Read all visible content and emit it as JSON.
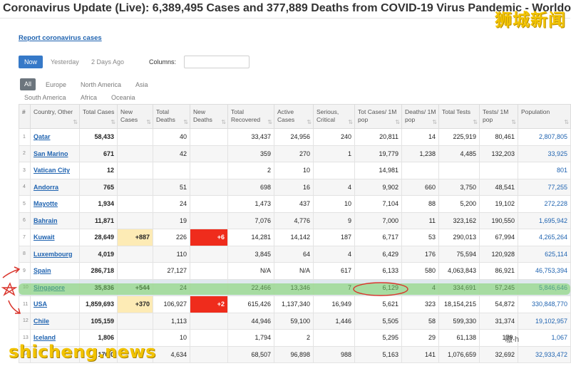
{
  "title": "Coronavirus Update (Live): 6,389,495 Cases and 377,889 Deaths from COVID-19 Virus Pandemic - Worldo",
  "watermark_top": "狮城新闻",
  "watermark_bottom": "shicheng.news",
  "watermark_right": "嗷 h",
  "report_link": "Report coronavirus cases",
  "day_buttons": {
    "now": "Now",
    "yesterday": "Yesterday",
    "two_days": "2 Days Ago"
  },
  "columns_label": "Columns:",
  "regions": {
    "all": "All",
    "europe": "Europe",
    "north_america": "North America",
    "asia": "Asia",
    "south_america": "South America",
    "africa": "Africa",
    "oceania": "Oceania"
  },
  "headers": [
    "#",
    "Country, Other",
    "Total Cases",
    "New Cases",
    "Total Deaths",
    "New Deaths",
    "Total Recovered",
    "Active Cases",
    "Serious, Critical",
    "Tot Cases/ 1M pop",
    "Deaths/ 1M pop",
    "Total Tests",
    "Tests/ 1M pop",
    "Population"
  ],
  "rows": [
    [
      "1",
      "Qatar",
      "58,433",
      "",
      "40",
      "",
      "33,437",
      "24,956",
      "240",
      "20,811",
      "14",
      "225,919",
      "80,461",
      "2,807,805"
    ],
    [
      "2",
      "San Marino",
      "671",
      "",
      "42",
      "",
      "359",
      "270",
      "1",
      "19,779",
      "1,238",
      "4,485",
      "132,203",
      "33,925"
    ],
    [
      "3",
      "Vatican City",
      "12",
      "",
      "",
      "",
      "2",
      "10",
      "",
      "14,981",
      "",
      "",
      "",
      "801"
    ],
    [
      "4",
      "Andorra",
      "765",
      "",
      "51",
      "",
      "698",
      "16",
      "4",
      "9,902",
      "660",
      "3,750",
      "48,541",
      "77,255"
    ],
    [
      "5",
      "Mayotte",
      "1,934",
      "",
      "24",
      "",
      "1,473",
      "437",
      "10",
      "7,104",
      "88",
      "5,200",
      "19,102",
      "272,228"
    ],
    [
      "6",
      "Bahrain",
      "11,871",
      "",
      "19",
      "",
      "7,076",
      "4,776",
      "9",
      "7,000",
      "11",
      "323,162",
      "190,550",
      "1,695,942"
    ],
    [
      "7",
      "Kuwait",
      "28,649",
      "+887",
      "226",
      "+6",
      "14,281",
      "14,142",
      "187",
      "6,717",
      "53",
      "290,013",
      "67,994",
      "4,265,264"
    ],
    [
      "8",
      "Luxembourg",
      "4,019",
      "",
      "110",
      "",
      "3,845",
      "64",
      "4",
      "6,429",
      "176",
      "75,594",
      "120,928",
      "625,114"
    ],
    [
      "9",
      "Spain",
      "286,718",
      "",
      "27,127",
      "",
      "N/A",
      "N/A",
      "617",
      "6,133",
      "580",
      "4,063,843",
      "86,921",
      "46,753,394"
    ],
    [
      "10",
      "Singapore",
      "35,836",
      "+544",
      "24",
      "",
      "22,466",
      "13,346",
      "7",
      "6,129",
      "4",
      "334,691",
      "57,245",
      "5,846,646"
    ],
    [
      "11",
      "USA",
      "1,859,693",
      "+370",
      "106,927",
      "+2",
      "615,426",
      "1,137,340",
      "16,949",
      "5,621",
      "323",
      "18,154,215",
      "54,872",
      "330,848,770"
    ],
    [
      "12",
      "Chile",
      "105,159",
      "",
      "1,113",
      "",
      "44,946",
      "59,100",
      "1,446",
      "5,505",
      "58",
      "599,330",
      "31,374",
      "19,102,957"
    ],
    [
      "13",
      "Iceland",
      "1,806",
      "",
      "10",
      "",
      "1,794",
      "2",
      "",
      "5,295",
      "29",
      "61,138",
      "179,",
      "1,067"
    ],
    [
      "14",
      "",
      "170,0",
      "",
      "4,634",
      "",
      "68,507",
      "96,898",
      "988",
      "5,163",
      "141",
      "1,076,659",
      "32,692",
      "32,933,472"
    ]
  ],
  "colors": {
    "accent": "#3679c8",
    "link": "#1f63b0",
    "new_cases_bg": "#fdebb5",
    "new_deaths_bg": "#ef2c1c",
    "highlight": "#78d264",
    "annotation": "#d9342b"
  }
}
